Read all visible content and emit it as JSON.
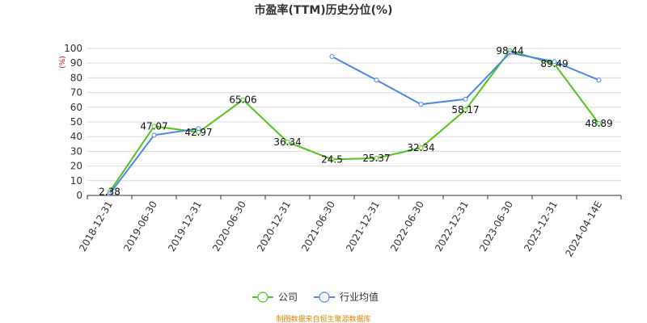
{
  "chart_data": {
    "type": "line",
    "title": "市盈率(TTM)历史分位(%)",
    "ylabel": "(%)",
    "ylim": [
      0,
      100
    ],
    "yticks": [
      0,
      10,
      20,
      30,
      40,
      50,
      60,
      70,
      80,
      90,
      100
    ],
    "categories": [
      "2018-12-31",
      "2019-06-30",
      "2019-12-31",
      "2020-06-30",
      "2020-12-31",
      "2021-06-30",
      "2021-12-31",
      "2022-06-30",
      "2022-12-31",
      "2023-06-30",
      "2023-12-31",
      "2024-04-14E"
    ],
    "series": [
      {
        "name": "公司",
        "color": "#52c41a",
        "values": [
          2.38,
          47.07,
          42.97,
          65.06,
          36.34,
          24.5,
          25.37,
          32.34,
          58.17,
          98.44,
          89.49,
          48.89
        ],
        "labels": [
          "2.38",
          "47.07",
          "42.97",
          "65.06",
          "36.34",
          "24.5",
          "25.37",
          "32.34",
          "58.17",
          "98.44",
          "89.49",
          "48.89"
        ]
      },
      {
        "name": "行业均值",
        "color": "#4a86e8",
        "values": [
          1,
          41,
          45.5,
          null,
          null,
          94.5,
          78.5,
          62,
          65.5,
          97,
          91,
          78.5
        ]
      }
    ],
    "grid": true,
    "legend": "bottom-center"
  },
  "footer": {
    "source": "制图数据来自恒生聚源数据库",
    "source_color": "#d48806"
  }
}
